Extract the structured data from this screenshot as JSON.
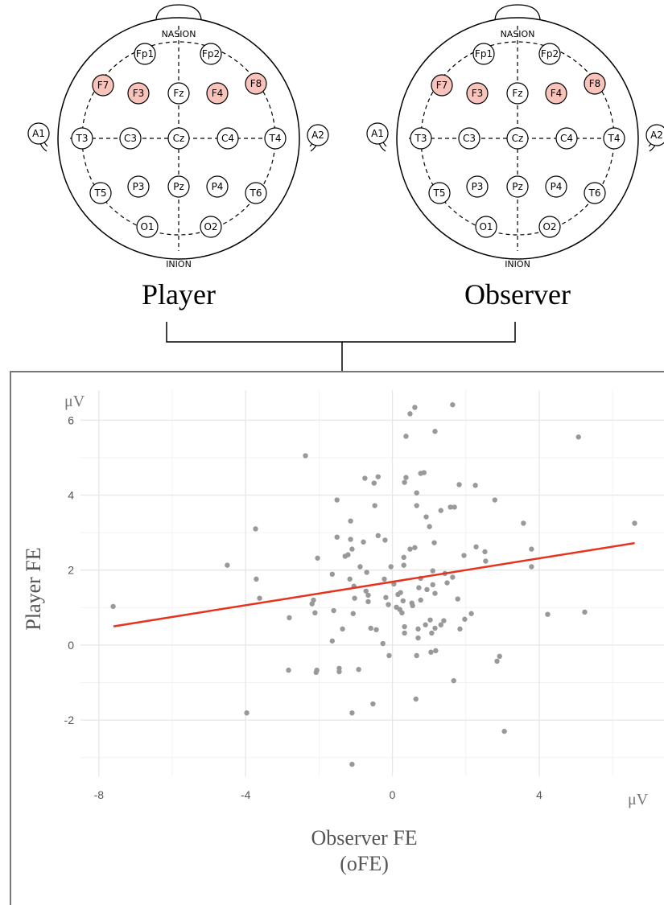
{
  "heads": {
    "labels": [
      "Player",
      "Observer"
    ],
    "landmarks": [
      "NASION",
      "INION"
    ],
    "electrodes": [
      "Fp1",
      "Fp2",
      "F7",
      "F3",
      "Fz",
      "F4",
      "F8",
      "A1",
      "T3",
      "C3",
      "Cz",
      "C4",
      "T4",
      "A2",
      "T5",
      "P3",
      "Pz",
      "P4",
      "T6",
      "O1",
      "O2"
    ],
    "highlighted": [
      "F7",
      "F3",
      "F4",
      "F8"
    ],
    "highlight_color": "#f8c3bb"
  },
  "chart_data": {
    "type": "scatter",
    "color": "#999999",
    "xlabel": [
      "Observer FE",
      "(oFE)"
    ],
    "ylabel": "Player FE",
    "x_unit": "μV",
    "y_unit": "μV",
    "xlim": [
      -8.5,
      7.4
    ],
    "ylim": [
      -3.5,
      6.8
    ],
    "xticks": [
      -8,
      -4,
      0,
      4
    ],
    "yticks": [
      -2,
      0,
      2,
      4,
      6
    ],
    "grid": true,
    "x": [
      -7.61,
      -4.5,
      -3.73,
      -3.71,
      -3.62,
      -3.97,
      -2.81,
      -2.83,
      -2.37,
      -2.15,
      -2.19,
      -2.11,
      -2.04,
      -2.08,
      -2.06,
      -1.64,
      -1.6,
      -1.64,
      -1.51,
      -1.51,
      -1.45,
      -1.45,
      -1.36,
      -1.29,
      -1.21,
      -1.14,
      -1.14,
      -1.16,
      -1.1,
      -1.05,
      -1.03,
      -1.07,
      -1.1,
      -1.1,
      -0.92,
      -0.88,
      -0.79,
      -0.75,
      -0.7,
      -0.72,
      -0.66,
      -0.66,
      -0.59,
      -0.53,
      -0.5,
      -0.48,
      -0.39,
      -0.39,
      -0.44,
      -0.26,
      -0.2,
      -0.22,
      -0.18,
      -0.11,
      -0.09,
      -0.04,
      0.04,
      0.11,
      0.15,
      0.2,
      0.22,
      0.26,
      0.29,
      0.31,
      0.31,
      0.33,
      0.33,
      0.33,
      0.37,
      0.37,
      0.48,
      0.48,
      0.53,
      0.55,
      0.61,
      0.61,
      0.66,
      0.66,
      0.64,
      0.66,
      0.7,
      0.7,
      0.72,
      0.77,
      0.77,
      0.77,
      0.86,
      0.9,
      0.92,
      0.94,
      1.01,
      1.03,
      1.05,
      1.07,
      1.1,
      1.1,
      1.14,
      1.16,
      1.16,
      1.18,
      1.16,
      1.32,
      1.32,
      1.4,
      1.43,
      1.49,
      1.58,
      1.64,
      1.64,
      1.67,
      1.69,
      1.78,
      1.82,
      1.84,
      1.95,
      1.97,
      2.15,
      2.26,
      2.28,
      2.52,
      2.54,
      2.79,
      2.85,
      2.92,
      3.05,
      3.57,
      3.79,
      3.79,
      4.23,
      5.07,
      5.24,
      6.6
    ],
    "y": [
      1.03,
      2.13,
      3.1,
      1.76,
      1.25,
      -1.81,
      0.73,
      -0.67,
      5.05,
      1.2,
      1.1,
      0.86,
      2.32,
      -0.73,
      -0.67,
      1.89,
      0.92,
      0.11,
      3.87,
      2.88,
      -0.62,
      -0.71,
      0.43,
      2.37,
      2.41,
      3.31,
      2.82,
      1.76,
      2.56,
      1.57,
      1.25,
      0.84,
      -1.81,
      -3.18,
      -0.65,
      2.09,
      2.75,
      4.45,
      1.94,
      1.44,
      1.33,
      1.16,
      0.45,
      -1.57,
      4.32,
      3.72,
      4.49,
      2.92,
      0.41,
      0.04,
      2.8,
      1.76,
      1.27,
      1.08,
      -0.28,
      2.09,
      1.63,
      1.01,
      1.35,
      0.95,
      1.4,
      0.86,
      1.18,
      2.34,
      2.13,
      0.49,
      0.32,
      4.34,
      4.47,
      5.57,
      6.17,
      2.56,
      1.12,
      1.05,
      6.34,
      2.6,
      4.06,
      3.72,
      -1.44,
      -0.28,
      0.19,
      0.43,
      1.53,
      1.78,
      1.2,
      4.58,
      4.6,
      0.54,
      3.42,
      1.48,
      3.16,
      0.67,
      -0.19,
      0.32,
      1.61,
      1.98,
      2.73,
      5.7,
      1.38,
      -0.15,
      0.45,
      3.59,
      0.54,
      0.65,
      1.91,
      1.66,
      3.68,
      6.41,
      1.81,
      -0.95,
      3.68,
      1.23,
      4.28,
      0.43,
      2.39,
      0.69,
      0.84,
      4.26,
      2.62,
      2.49,
      2.24,
      3.87,
      -0.43,
      -0.3,
      -2.3,
      3.25,
      2.09,
      2.56,
      0.82,
      5.55,
      0.88,
      3.25
    ],
    "fit_line": {
      "color": "#e8321e",
      "x": [
        -7.6,
        6.6
      ],
      "y": [
        0.5,
        2.72
      ]
    }
  }
}
